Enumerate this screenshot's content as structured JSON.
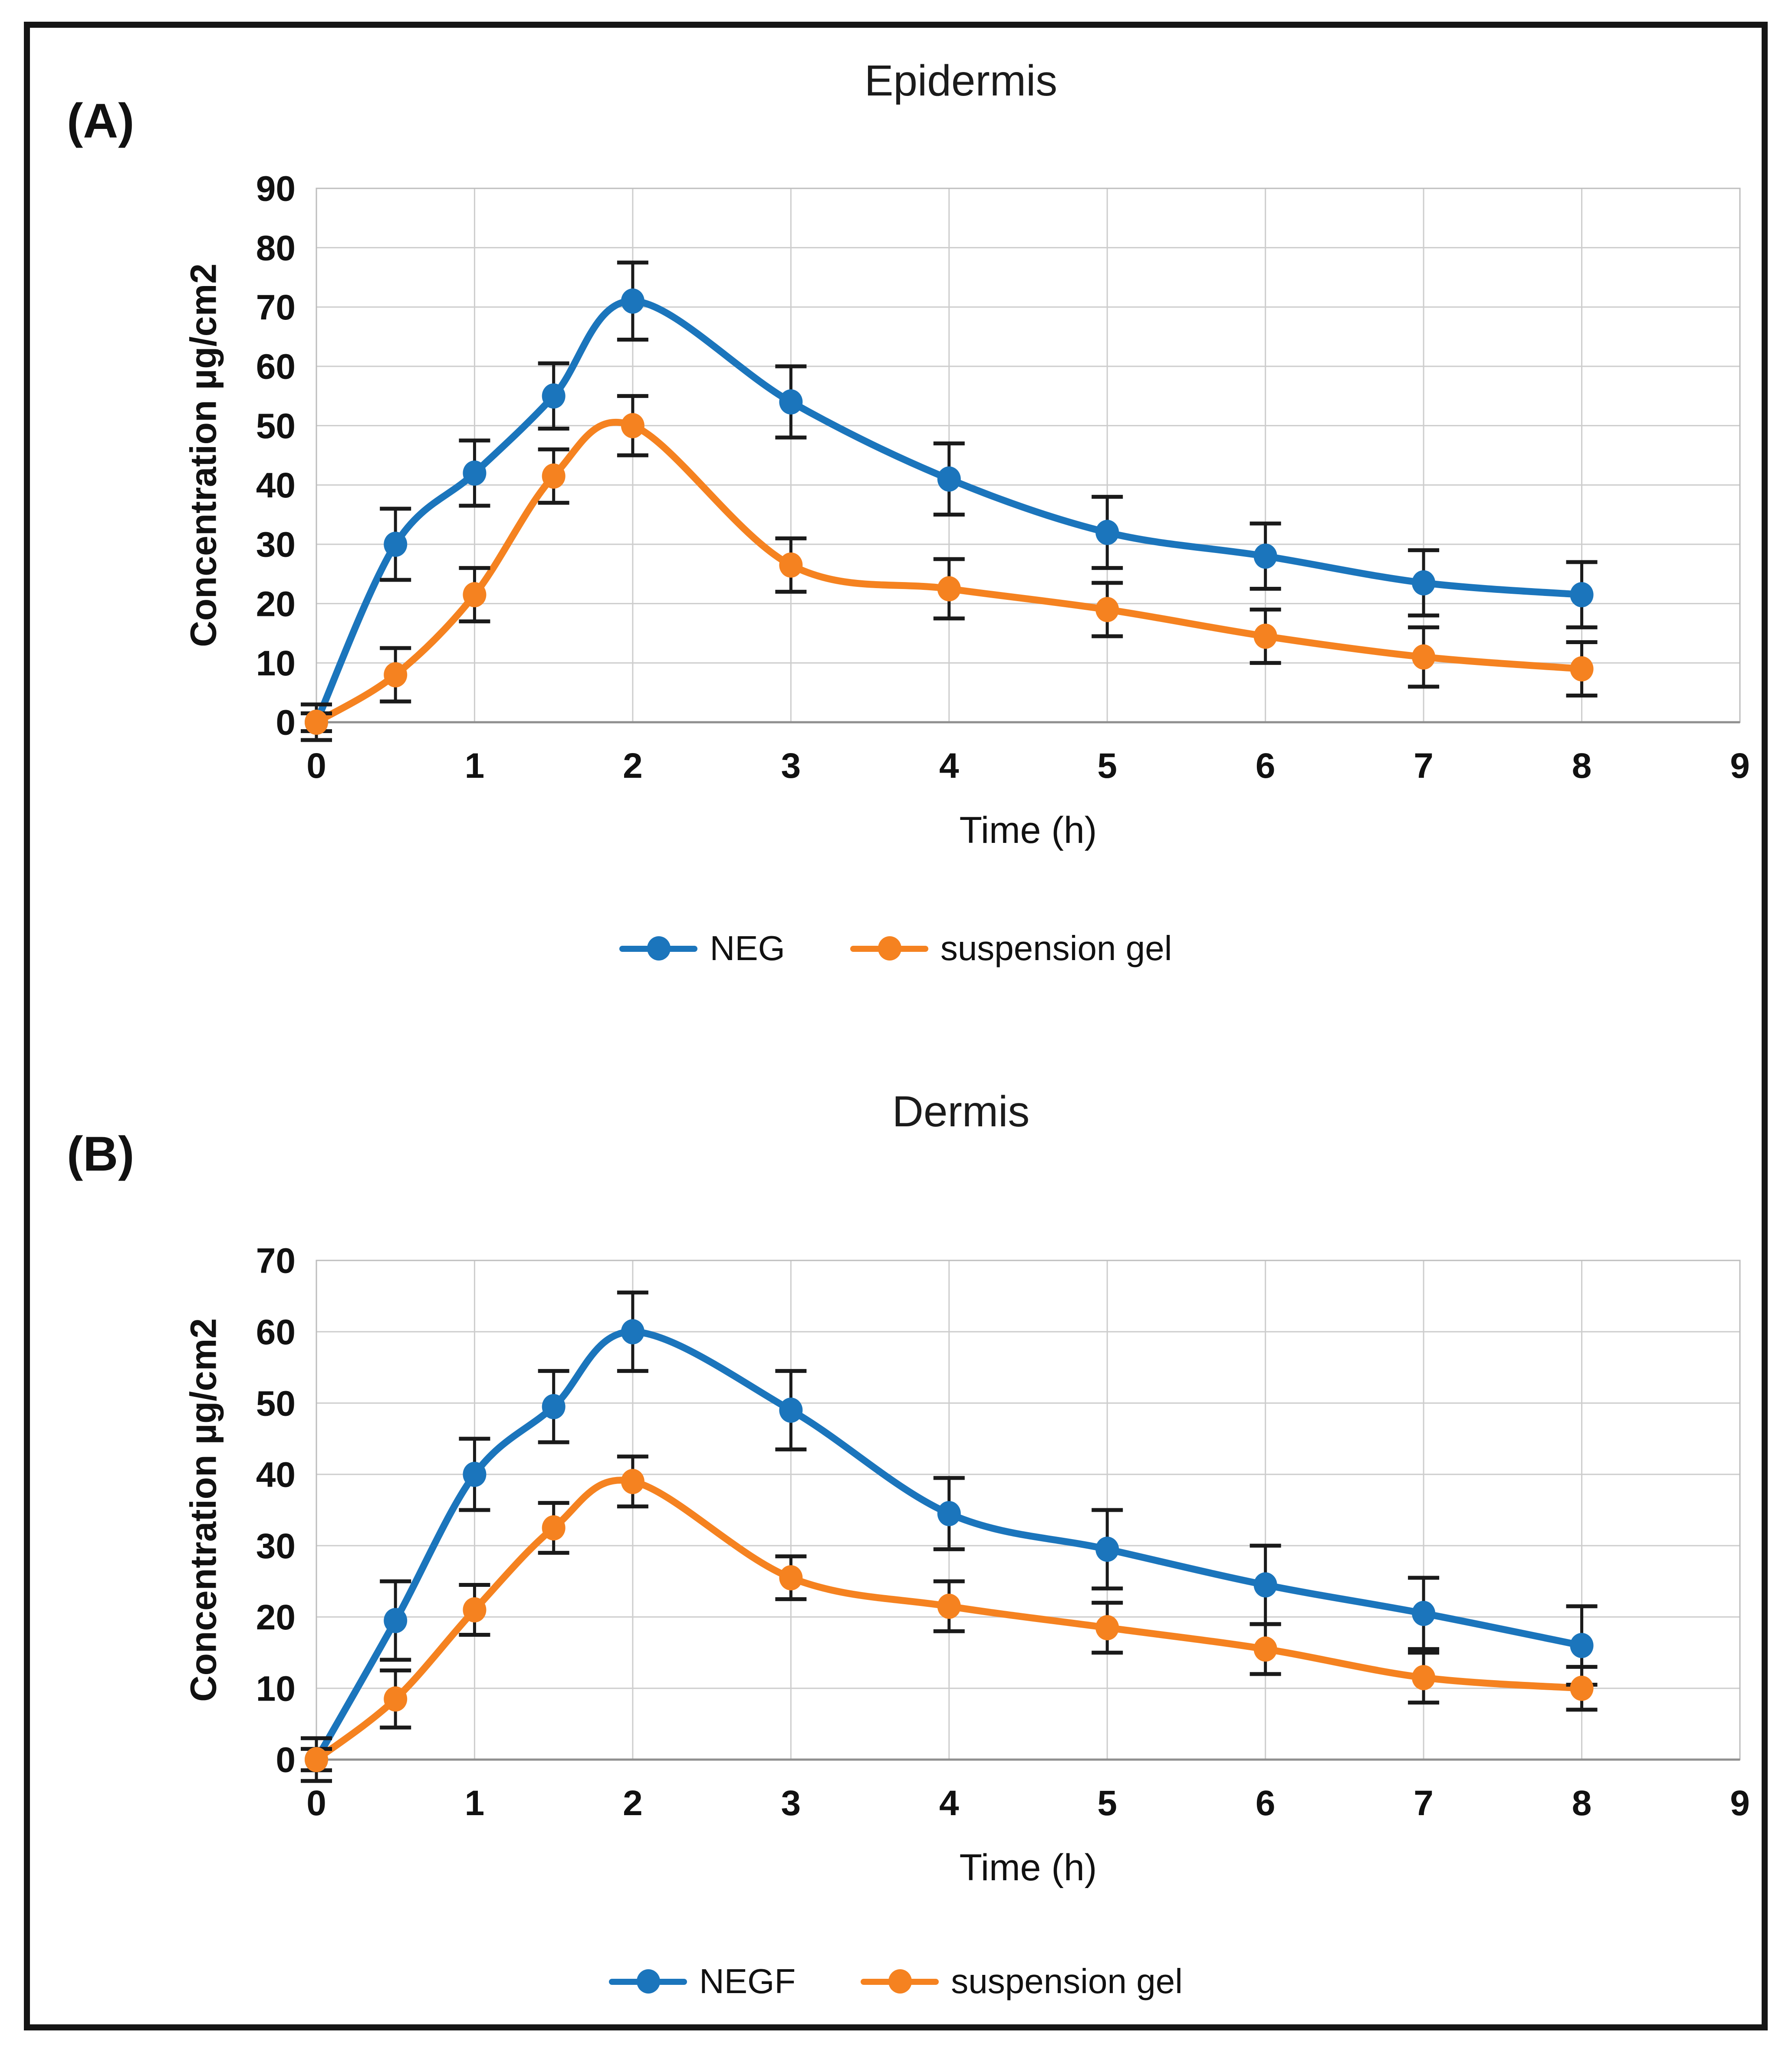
{
  "figure": {
    "panels": [
      {
        "id": "A",
        "label": "(A)",
        "title": "Epidermis",
        "x_label": "Time (h)",
        "y_label": "Concentration µg/cm2",
        "legend": [
          {
            "name": "NEG",
            "color": "#1b75bc"
          },
          {
            "name": "suspension gel",
            "color": "#f58220"
          }
        ]
      },
      {
        "id": "B",
        "label": "(B)",
        "title": "Dermis",
        "x_label": "Time (h)",
        "y_label": "Concentration µg/cm2",
        "legend": [
          {
            "name": "NEGF",
            "color": "#1b75bc"
          },
          {
            "name": "suspension gel",
            "color": "#f58220"
          }
        ]
      }
    ]
  },
  "colors": {
    "blue_series": "#1b75bc",
    "orange_series": "#f58220",
    "error_bar": "#1a1a1a",
    "gridline": "#cdcdcd",
    "plot_border": "#bdbdbd",
    "axis_line": "#8f8f8f",
    "frame_border": "#151515"
  },
  "chart_data": [
    {
      "type": "line",
      "title": "Epidermis",
      "xlabel": "Time (h)",
      "ylabel": "Concentration µg/cm2",
      "x": [
        0,
        0.5,
        1,
        1.5,
        2,
        3,
        4,
        5,
        6,
        7,
        8
      ],
      "xlim": [
        0,
        9
      ],
      "ylim": [
        0,
        90
      ],
      "ytick_step": 10,
      "xticks": [
        0,
        1,
        2,
        3,
        4,
        5,
        6,
        7,
        8,
        9
      ],
      "grid": true,
      "legend_position": "bottom",
      "series": [
        {
          "name": "NEG",
          "color": "#1b75bc",
          "values": [
            0,
            30,
            42,
            55,
            71,
            54,
            41,
            32,
            28,
            23.5,
            21.5
          ],
          "errors": [
            3,
            6,
            5.5,
            5.5,
            6.5,
            6,
            6,
            6,
            5.5,
            5.5,
            5.5
          ]
        },
        {
          "name": "suspension gel",
          "color": "#f58220",
          "values": [
            0,
            8,
            21.5,
            41.5,
            50,
            26.5,
            22.5,
            19,
            14.5,
            11,
            9
          ],
          "errors": [
            1.5,
            4.5,
            4.5,
            4.5,
            5,
            4.5,
            5,
            4.5,
            4.5,
            5,
            4.5
          ]
        }
      ]
    },
    {
      "type": "line",
      "title": "Dermis",
      "xlabel": "Time (h)",
      "ylabel": "Concentration µg/cm2",
      "x": [
        0,
        0.5,
        1,
        1.5,
        2,
        3,
        4,
        5,
        6,
        7,
        8
      ],
      "xlim": [
        0,
        9
      ],
      "ylim": [
        0,
        70
      ],
      "ytick_step": 10,
      "xticks": [
        0,
        1,
        2,
        3,
        4,
        5,
        6,
        7,
        8,
        9
      ],
      "grid": true,
      "legend_position": "bottom",
      "series": [
        {
          "name": "NEGF",
          "color": "#1b75bc",
          "values": [
            0,
            19.5,
            40,
            49.5,
            60,
            49,
            34.5,
            29.5,
            24.5,
            20.5,
            16
          ],
          "errors": [
            3,
            5.5,
            5,
            5,
            5.5,
            5.5,
            5,
            5.5,
            5.5,
            5,
            5.5
          ]
        },
        {
          "name": "suspension gel",
          "color": "#f58220",
          "values": [
            0,
            8.5,
            21,
            32.5,
            39,
            25.5,
            21.5,
            18.5,
            15.5,
            11.5,
            10
          ],
          "errors": [
            1.5,
            4,
            3.5,
            3.5,
            3.5,
            3,
            3.5,
            3.5,
            3.5,
            3.5,
            3
          ]
        }
      ]
    }
  ]
}
